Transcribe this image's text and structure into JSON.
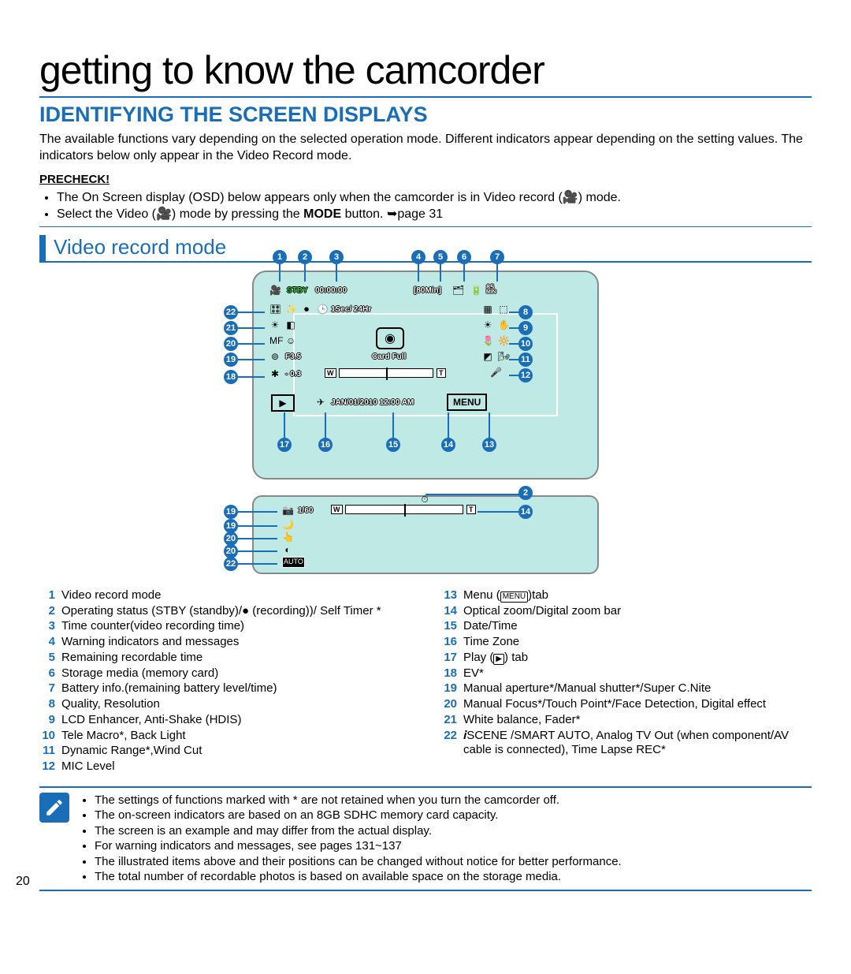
{
  "page_title": "getting to know the camcorder",
  "section_heading": "Identifying the Screen Displays",
  "intro": "The available functions vary depending on the selected operation mode. Different indicators appear depending on the setting values. The indicators below only appear in the Video Record mode.",
  "precheck_label": "PRECHECK!",
  "precheck_items": [
    "The On Screen display (OSD) below appears only when the camcorder is in Video record (🎥) mode.",
    "Select the Video (🎥) mode by pressing the MODE button. ➥page 31"
  ],
  "sub_heading": "Video record mode",
  "osd": {
    "stby": "STBY",
    "timer": "00:00:00",
    "remain": "[80Min]",
    "bat_min": "85",
    "bat_unit": "MIN",
    "timelapse": "1Sec/ 24Hr",
    "aperture": "F3.5",
    "cardfull": "Card Full",
    "ev": "- 0.3",
    "ev_icon": "✱",
    "datetime": "JAN/01/2010 12:00 AM",
    "menu": "MENU",
    "shutter": "1/60",
    "zoom_w": "W",
    "zoom_t": "T"
  },
  "legend_left": [
    {
      "n": "1",
      "t": "Video record mode"
    },
    {
      "n": "2",
      "t": "Operating status (STBY (standby)/● (recording))/ Self Timer *"
    },
    {
      "n": "3",
      "t": "Time counter(video recording time)"
    },
    {
      "n": "4",
      "t": "Warning indicators and messages"
    },
    {
      "n": "5",
      "t": "Remaining recordable time"
    },
    {
      "n": "6",
      "t": "Storage media (memory card)"
    },
    {
      "n": "7",
      "t": "Battery info.(remaining battery level/time)"
    },
    {
      "n": "8",
      "t": "Quality, Resolution"
    },
    {
      "n": "9",
      "t": "LCD Enhancer, Anti-Shake (HDIS)"
    },
    {
      "n": "10",
      "t": "Tele Macro*, Back Light"
    },
    {
      "n": "11",
      "t": "Dynamic Range*,Wind Cut"
    },
    {
      "n": "12",
      "t": "MIC Level"
    }
  ],
  "legend_right": [
    {
      "n": "13",
      "t": "Menu (MENU)tab"
    },
    {
      "n": "14",
      "t": "Optical zoom/Digital zoom bar"
    },
    {
      "n": "15",
      "t": "Date/Time"
    },
    {
      "n": "16",
      "t": "Time Zone"
    },
    {
      "n": "17",
      "t": "Play (▶) tab"
    },
    {
      "n": "18",
      "t": "EV*"
    },
    {
      "n": "19",
      "t": "Manual aperture*/Manual shutter*/Super C.Nite"
    },
    {
      "n": "20",
      "t": "Manual Focus*/Touch Point*/Face Detection, Digital effect"
    },
    {
      "n": "21",
      "t": "White balance, Fader*"
    },
    {
      "n": "22",
      "t": "𝒊SCENE /SMART AUTO, Analog TV Out (when component/AV cable is connected), Time Lapse REC*"
    }
  ],
  "notes": [
    "The settings of functions marked with * are not retained when you turn the camcorder off.",
    "The on-screen indicators are based on an 8GB SDHC memory card capacity.",
    "The screen is an example and may differ from the actual display.",
    "For warning indicators and messages, see pages 131~137",
    "The illustrated items above and their positions can be changed without notice for better performance.",
    "The total number of recordable photos is based on available space on the storage media."
  ],
  "page_number": "20",
  "colors": {
    "accent": "#1a6eb8",
    "screen_bg": "#bfe9e5"
  },
  "top_callouts": [
    "1",
    "2",
    "3",
    "4",
    "5",
    "6",
    "7"
  ],
  "left_callouts": [
    "22",
    "21",
    "20",
    "19",
    "18"
  ],
  "right_callouts": [
    "8",
    "9",
    "10",
    "11",
    "12"
  ],
  "bottom_callouts": [
    "17",
    "16",
    "15",
    "14",
    "13"
  ],
  "strip_left_callouts": [
    "19",
    "19",
    "20",
    "20",
    "22"
  ],
  "strip_right_top": "2",
  "strip_right_mid": "14"
}
